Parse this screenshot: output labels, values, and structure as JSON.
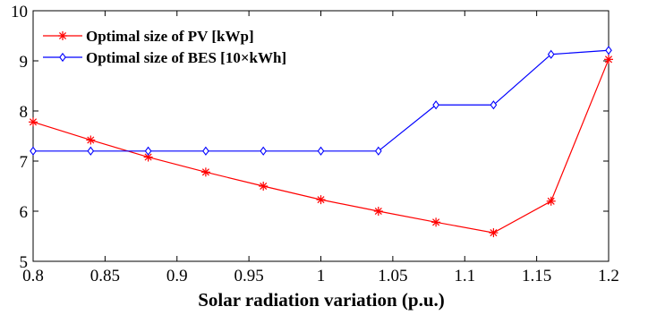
{
  "chart_data": {
    "type": "line",
    "title": "",
    "xlabel": "Solar radiation variation (p.u.)",
    "ylabel": "",
    "xlim": [
      0.8,
      1.2
    ],
    "ylim": [
      5,
      10
    ],
    "xticks": [
      0.8,
      0.85,
      0.9,
      0.95,
      1,
      1.05,
      1.1,
      1.15,
      1.2
    ],
    "xtick_labels": [
      "0.8",
      "0.85",
      "0.9",
      "0.95",
      "1",
      "1.05",
      "1.1",
      "1.15",
      "1.2"
    ],
    "yticks": [
      5,
      6,
      7,
      8,
      9,
      10
    ],
    "ytick_labels": [
      "5",
      "6",
      "7",
      "8",
      "9",
      "10"
    ],
    "grid": false,
    "legend_position": "top-left",
    "x": [
      0.8,
      0.84,
      0.88,
      0.92,
      0.96,
      1.0,
      1.04,
      1.08,
      1.12,
      1.16,
      1.2
    ],
    "series": [
      {
        "name": "Optimal size of PV [kWp]",
        "color": "#ff0000",
        "marker": "asterisk",
        "values": [
          7.78,
          7.42,
          7.08,
          6.78,
          6.5,
          6.23,
          6.0,
          5.78,
          5.57,
          6.2,
          9.03
        ]
      },
      {
        "name": "Optimal size of BES [10×kWh]",
        "color": "#0000ff",
        "marker": "diamond",
        "values": [
          7.2,
          7.2,
          7.2,
          7.2,
          7.2,
          7.2,
          7.2,
          8.12,
          8.12,
          9.13,
          9.21
        ]
      }
    ]
  }
}
